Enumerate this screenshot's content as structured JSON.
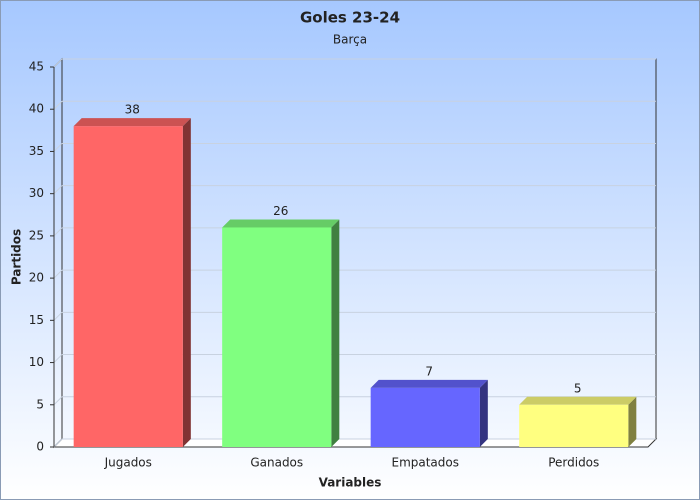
{
  "chart_data": {
    "type": "bar3d",
    "title": "Goles 23-24",
    "subtitle": "Barça",
    "x_label": "Variables",
    "y_label": "Partidos",
    "categories": [
      "Jugados",
      "Ganados",
      "Empatados",
      "Perdidos"
    ],
    "values": [
      38,
      26,
      7,
      5
    ],
    "colors": [
      "#ff6666",
      "#80ff80",
      "#6666ff",
      "#ffff80"
    ],
    "ylim": [
      0,
      45
    ],
    "yticks": [
      0,
      5,
      10,
      15,
      20,
      25,
      30,
      35,
      40,
      45
    ],
    "grid": true
  }
}
